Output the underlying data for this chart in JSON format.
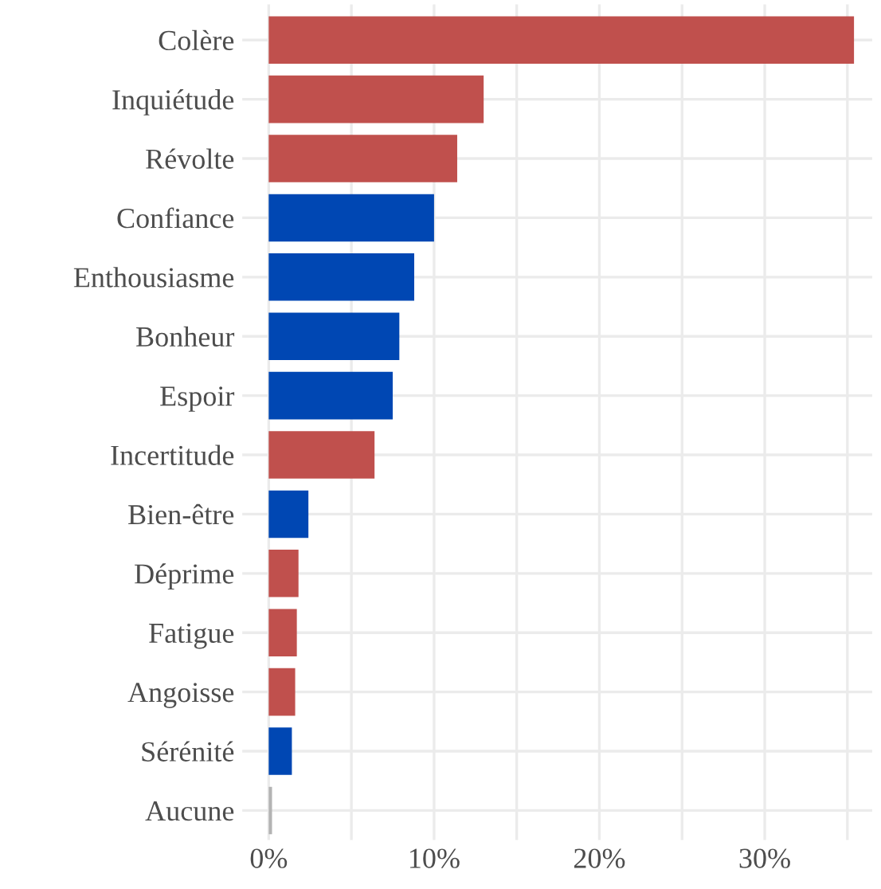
{
  "chart_data": {
    "type": "bar",
    "orientation": "horizontal",
    "categories": [
      "Colère",
      "Inquiétude",
      "Révolte",
      "Confiance",
      "Enthousiasme",
      "Bonheur",
      "Espoir",
      "Incertitude",
      "Bien-être",
      "Déprime",
      "Fatigue",
      "Angoisse",
      "Sérénité",
      "Aucune"
    ],
    "values": [
      35.4,
      13.0,
      11.4,
      10.0,
      8.8,
      7.9,
      7.5,
      6.4,
      2.4,
      1.8,
      1.7,
      1.6,
      1.4,
      0.2
    ],
    "colors": [
      "#c0504d",
      "#c0504d",
      "#c0504d",
      "#0047b3",
      "#0047b3",
      "#0047b3",
      "#0047b3",
      "#c0504d",
      "#0047b3",
      "#c0504d",
      "#c0504d",
      "#c0504d",
      "#0047b3",
      "#b3b3b3"
    ],
    "xlim": [
      -1.6,
      36.5
    ],
    "xticks": [
      {
        "value": 0,
        "label": "0%"
      },
      {
        "value": 5,
        "label": null
      },
      {
        "value": 10,
        "label": "10%"
      },
      {
        "value": 15,
        "label": null
      },
      {
        "value": 20,
        "label": "20%"
      },
      {
        "value": 25,
        "label": null
      },
      {
        "value": 30,
        "label": "30%"
      },
      {
        "value": 35,
        "label": null
      }
    ],
    "grid": true
  }
}
